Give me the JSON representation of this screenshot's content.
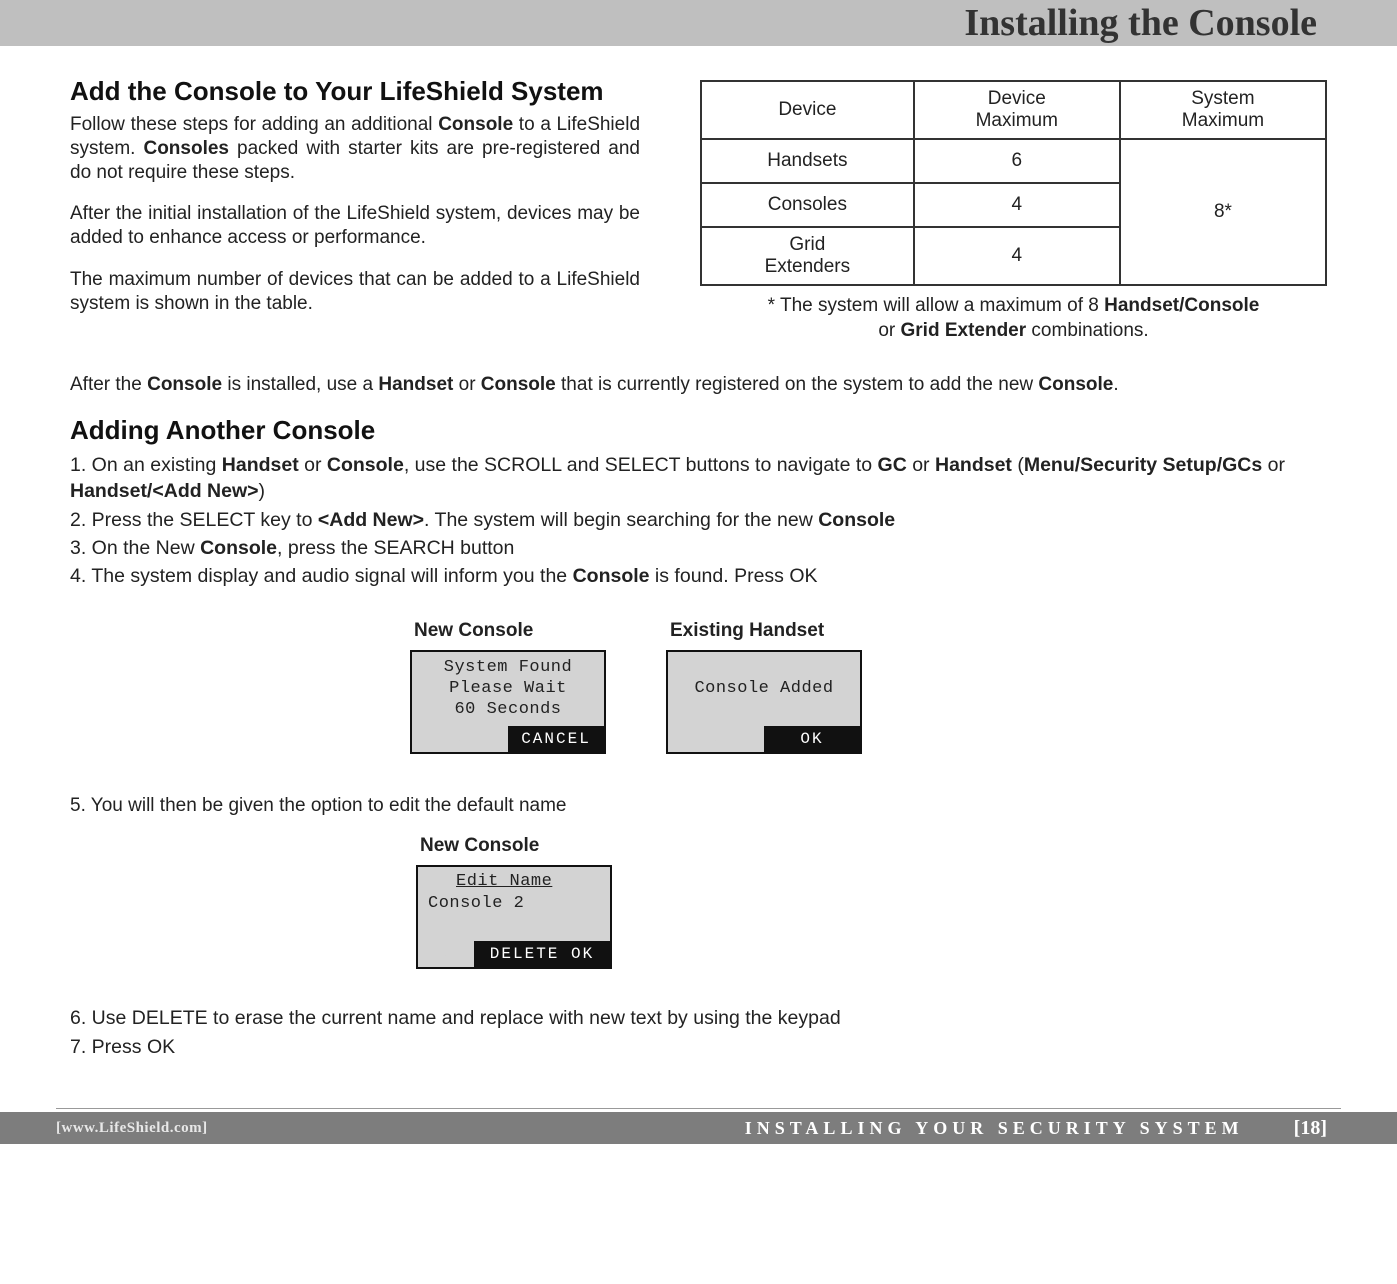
{
  "page": {
    "title": "Installing the Console",
    "footer_url": "[www.LifeShield.com]",
    "footer_mid": "INSTALLING YOUR SECURITY SYSTEM",
    "footer_page": "[18]"
  },
  "section1": {
    "heading": "Add the Console to Your LifeShield System",
    "p1_a": "Follow these steps for adding an additional ",
    "p1_b": "Console",
    "p1_c": " to a LifeShield system. ",
    "p1_d": "Consoles",
    "p1_e": " packed with starter kits are pre-registered and do not require these steps.",
    "p2": "After the initial installation of the LifeShield system, devices may be added to enhance access or performance.",
    "p3": "The maximum number of devices that can be added to a LifeShield system is shown in the table."
  },
  "table": {
    "h1": "Device",
    "h2_l1": "Device",
    "h2_l2": "Maximum",
    "h3_l1": "System",
    "h3_l2": "Maximum",
    "r1c1": "Handsets",
    "r1c2": "6",
    "r2c1": "Consoles",
    "r2c2": "4",
    "r3c1_l1": "Grid",
    "r3c1_l2": "Extenders",
    "r3c2": "4",
    "sys_max": "8*",
    "foot_a": "* The system will allow a maximum of 8 ",
    "foot_b": "Handset/Console",
    "foot_c": "or ",
    "foot_d": "Grid Extender",
    "foot_e": " combinations."
  },
  "para_after": {
    "a": "After the ",
    "b": "Console",
    "c": " is installed, use a ",
    "d": "Handset",
    "e": " or ",
    "f": "Console",
    "g": " that is currently registered on the system to add the new ",
    "h": "Console",
    "i": "."
  },
  "section2": {
    "heading": "Adding Another Console"
  },
  "steps1": {
    "s1_a": "1. On an existing ",
    "s1_b": "Handset",
    "s1_c": " or ",
    "s1_d": "Console",
    "s1_e": ", use the SCROLL and SELECT buttons to navigate to ",
    "s1_f": "GC",
    "s1_g": " or ",
    "s1_h": "Handset",
    "s1_i": " (",
    "s1_j": "Menu/Security Setup/GCs",
    "s1_k": " or ",
    "s1_l": "Handset/<Add New>",
    "s1_m": ")",
    "s2_a": "2. Press the SELECT key to ",
    "s2_b": "<Add New>",
    "s2_c": ".  The system will begin searching for the new ",
    "s2_d": "Console",
    "s3_a": "3. On the New ",
    "s3_b": "Console",
    "s3_c": ", press the SEARCH button",
    "s4_a": "4. The system display and audio signal will inform you the ",
    "s4_b": "Console",
    "s4_c": " is found. Press OK"
  },
  "lcd": {
    "new_console_label": "New Console",
    "existing_handset_label": "Existing Handset",
    "found_l1": "System Found",
    "found_l2": "Please Wait",
    "found_l3": "60 Seconds",
    "cancel": "CANCEL",
    "added": "Console Added",
    "ok": "OK",
    "edit_name": "Edit Name",
    "console2": "Console 2",
    "delete_ok": "DELETE OK"
  },
  "step5": "5. You will then be given the option to edit the default name",
  "steps67": {
    "s6": "6. Use DELETE to erase the current name and replace with new text by using the keypad",
    "s7": "7. Press OK"
  }
}
